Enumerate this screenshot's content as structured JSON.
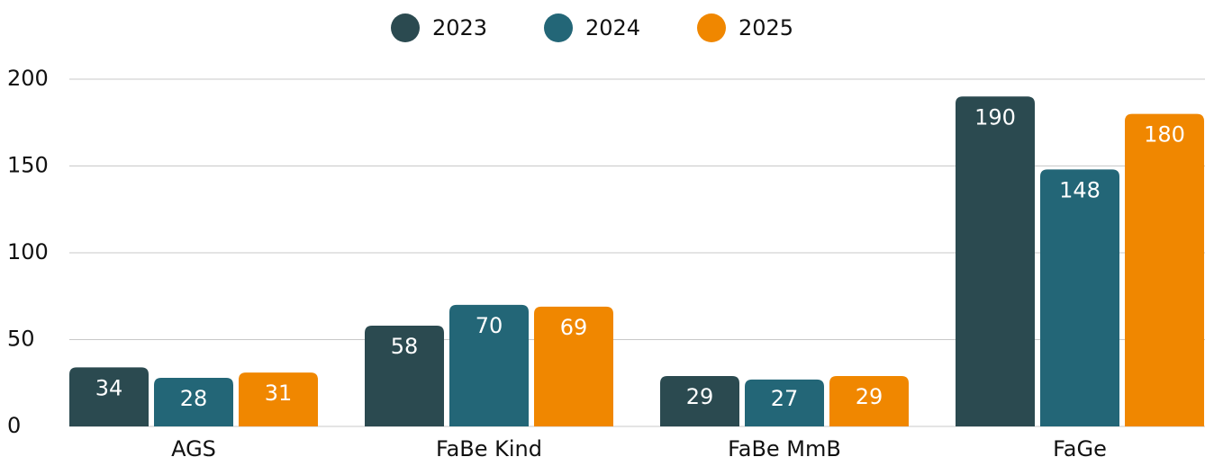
{
  "chart_data": {
    "type": "bar",
    "categories": [
      "AGS",
      "FaBe Kind",
      "FaBe MmB",
      "FaGe"
    ],
    "series": [
      {
        "name": "2023",
        "color": "#2b4a50",
        "values": [
          34,
          58,
          29,
          190
        ]
      },
      {
        "name": "2024",
        "color": "#236677",
        "values": [
          28,
          70,
          27,
          148
        ]
      },
      {
        "name": "2025",
        "color": "#f08700",
        "values": [
          31,
          69,
          29,
          180
        ]
      }
    ],
    "ylim": [
      0,
      200
    ],
    "yticks": [
      0,
      50,
      100,
      150,
      200
    ],
    "grid": true,
    "legend": "top"
  }
}
